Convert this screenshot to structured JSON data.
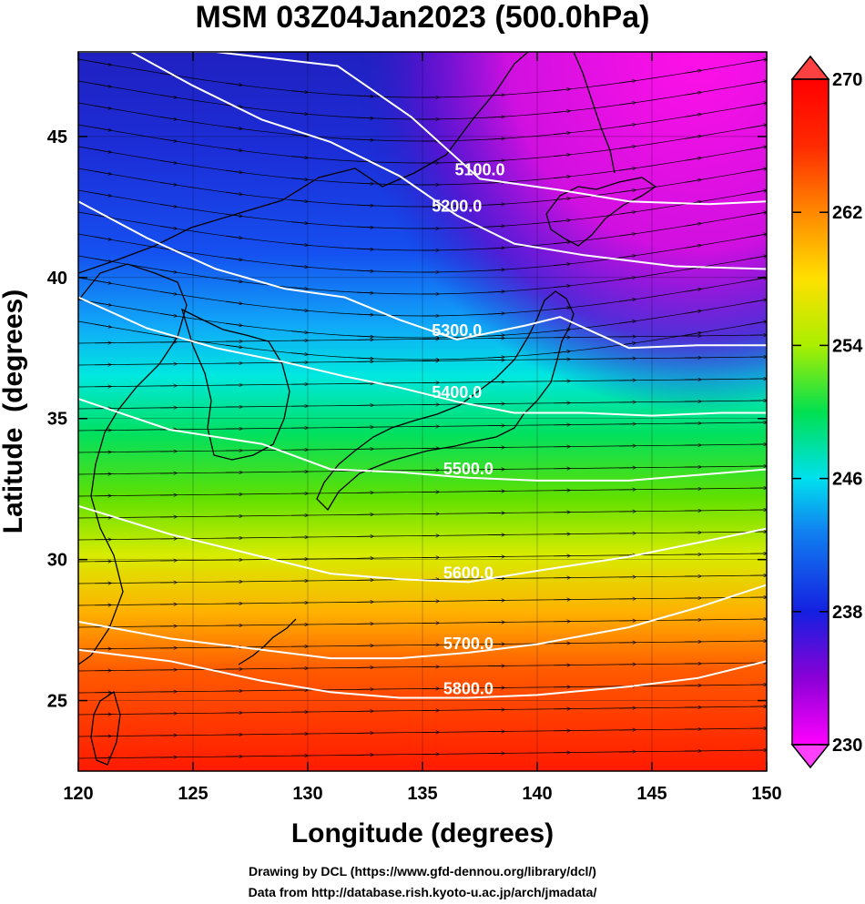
{
  "chart_data": {
    "type": "heatmap",
    "title": "MSM 03Z04Jan2023 (500.0hPa)",
    "xlabel": "Longitude (degrees)",
    "ylabel": "Latitude  (degrees)",
    "xlim": [
      120,
      150
    ],
    "ylim": [
      22.5,
      48
    ],
    "x_ticks": [
      "120",
      "125",
      "130",
      "135",
      "140",
      "145",
      "150"
    ],
    "y_ticks": [
      "25",
      "30",
      "35",
      "40",
      "45"
    ],
    "x_tick_values": [
      120,
      125,
      130,
      135,
      140,
      145,
      150
    ],
    "y_tick_values": [
      25,
      30,
      35,
      40,
      45
    ],
    "colorbar": {
      "range": [
        230,
        270
      ],
      "tick_labels": [
        "230",
        "238",
        "246",
        "254",
        "262",
        "270"
      ],
      "tick_values": [
        230,
        238,
        246,
        254,
        262,
        270
      ],
      "colors": [
        "#ff00ff",
        "#8a00d6",
        "#1420e0",
        "#00aaff",
        "#00e0ee",
        "#00e050",
        "#aaee00",
        "#ffe000",
        "#ff8800",
        "#ff2a00",
        "#ff0000"
      ]
    },
    "contours": [
      {
        "label": "5100.0",
        "level": 5100,
        "x": [
          120,
          126,
          131.3,
          134.5,
          137.5,
          141,
          144,
          147.5,
          150
        ],
        "y": [
          48,
          48,
          47.5,
          45.7,
          43.5,
          43.1,
          42.7,
          42.6,
          42.7
        ]
      },
      {
        "label": "5200.0",
        "level": 5200,
        "x": [
          122.3,
          125,
          128,
          131,
          134,
          136.5,
          139,
          142,
          146,
          150
        ],
        "y": [
          48,
          46.8,
          45.6,
          44.8,
          43.6,
          42.2,
          41.2,
          40.8,
          40.4,
          40.3
        ]
      },
      {
        "label": "5300.0",
        "level": 5300,
        "x": [
          120,
          123,
          126,
          129,
          131.6,
          134,
          136.5,
          139.5,
          141,
          144,
          147,
          150
        ],
        "y": [
          42.7,
          41.4,
          40.3,
          39.6,
          39.3,
          38.5,
          37.8,
          38.3,
          38.6,
          37.5,
          37.6,
          37.6
        ]
      },
      {
        "label": "5400.0",
        "level": 5400,
        "x": [
          120,
          123,
          126,
          129,
          131.6,
          134,
          136.5,
          139,
          142,
          145,
          148,
          150
        ],
        "y": [
          39.3,
          38.2,
          37.5,
          37,
          36.5,
          36.1,
          35.6,
          35.2,
          35.2,
          35.1,
          35.2,
          35.2
        ]
      },
      {
        "label": "5500.0",
        "level": 5500,
        "x": [
          120,
          124,
          128,
          131,
          134,
          137,
          140,
          144,
          147,
          150
        ],
        "y": [
          35.7,
          34.6,
          34.1,
          33.2,
          33.1,
          32.9,
          32.8,
          32.8,
          33,
          33.2
        ]
      },
      {
        "label": "5600.0",
        "level": 5600,
        "x": [
          120,
          124,
          128,
          131,
          134,
          137,
          140,
          144,
          147,
          150
        ],
        "y": [
          31.9,
          30.9,
          30.1,
          29.5,
          29.3,
          29.2,
          29.6,
          30.1,
          30.6,
          31.1
        ]
      },
      {
        "label": "5700.0",
        "level": 5700,
        "x": [
          120,
          124,
          128,
          131,
          134,
          137,
          140,
          144,
          147,
          150
        ],
        "y": [
          27.8,
          27.2,
          26.8,
          26.5,
          26.5,
          26.7,
          27,
          27.6,
          28.3,
          29.1
        ]
      },
      {
        "label": "5800.0",
        "level": 5800,
        "x": [
          120,
          124,
          128,
          131,
          134,
          137,
          140,
          144,
          147,
          150
        ],
        "y": [
          26.8,
          26.4,
          25.7,
          25.3,
          25.1,
          25.1,
          25.2,
          25.5,
          25.8,
          26.4
        ]
      }
    ],
    "credits": [
      "Drawing by DCL (https://www.gfd-dennou.org/library/dcl/)",
      "Data from http://database.rish.kyoto-u.ac.jp/arch/jmadata/"
    ]
  }
}
